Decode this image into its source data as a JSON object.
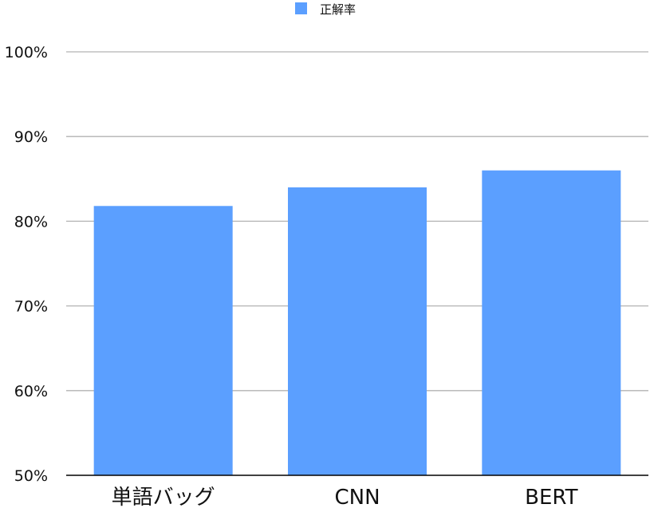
{
  "chart_data": {
    "type": "bar",
    "categories": [
      "単語バッグ",
      "CNN",
      "BERT"
    ],
    "series": [
      {
        "name": "正解率",
        "values": [
          81.8,
          84.0,
          86.0
        ],
        "color": "#5B9FFF"
      }
    ],
    "ylim": [
      50,
      100
    ],
    "yticks": [
      50,
      60,
      70,
      80,
      90,
      100
    ],
    "ytick_labels": [
      "50%",
      "60%",
      "70%",
      "80%",
      "90%",
      "100%"
    ],
    "grid": true,
    "legend_position": "top-center",
    "gridline_color": "#b3b3b3",
    "axis_color": "#000000"
  }
}
